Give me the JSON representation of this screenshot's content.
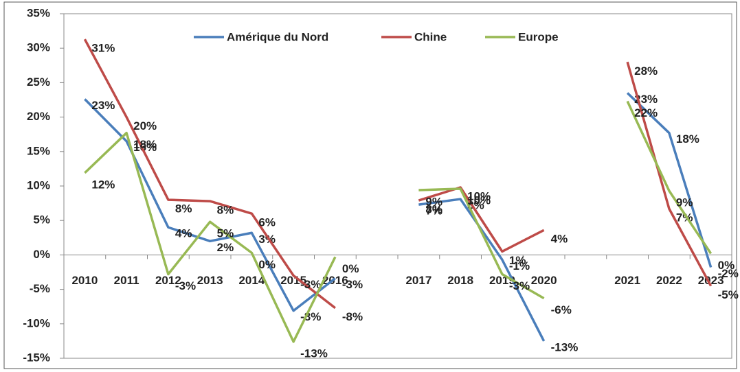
{
  "chart_data": {
    "type": "line",
    "categories": [
      "2010",
      "2011",
      "2012",
      "2013",
      "2014",
      "2015",
      "2016",
      null,
      "2017",
      "2018",
      "2019",
      "2020",
      null,
      "2021",
      "2022",
      "2023"
    ],
    "series": [
      {
        "name": "Amérique du Nord",
        "color": "#4a7ebb",
        "values": [
          22.6,
          16.5,
          4,
          2,
          3.2,
          -8.1,
          -3.4,
          null,
          7.3,
          8.1,
          -0.7,
          -12.5,
          null,
          23.5,
          17.7,
          -1.8
        ],
        "value_labels": [
          "23%",
          "16%",
          "4%",
          "2%",
          "3%",
          "-8%",
          "-3%",
          null,
          "7%",
          "8%",
          "-1%",
          "-13%",
          null,
          "23%",
          "18%",
          "-2%"
        ]
      },
      {
        "name": "Chine",
        "color": "#be4b48",
        "values": [
          31.3,
          20,
          8,
          7.8,
          6,
          -3,
          -7.7,
          null,
          7.9,
          9.8,
          0.5,
          3.6,
          null,
          28,
          6.7,
          -4.5
        ],
        "value_labels": [
          "31%",
          "20%",
          "8%",
          "8%",
          "6%",
          "-3%",
          "-8%",
          null,
          "8%",
          "10%",
          "1%",
          "4%",
          null,
          "28%",
          "7%",
          "-5%"
        ]
      },
      {
        "name": "Europe",
        "color": "#98b954",
        "values": [
          11.9,
          17.7,
          -2.8,
          4.8,
          0.3,
          -12.6,
          -0.3,
          null,
          9.4,
          9.6,
          -2.8,
          -6.3,
          null,
          22.3,
          9.3,
          0.2
        ],
        "value_labels": [
          "12%",
          "18%",
          "-3%",
          "5%",
          "0%",
          "-13%",
          "0%",
          null,
          "9%",
          "10%",
          "-3%",
          "-6%",
          null,
          "22%",
          "9%",
          "0%"
        ]
      }
    ],
    "ylim": [
      -15,
      35
    ],
    "yticks": [
      {
        "value": -15,
        "label": "-15%"
      },
      {
        "value": -10,
        "label": "-10%"
      },
      {
        "value": -5,
        "label": "-5%"
      },
      {
        "value": 0,
        "label": "0%"
      },
      {
        "value": 5,
        "label": "5%"
      },
      {
        "value": 10,
        "label": "10%"
      },
      {
        "value": 15,
        "label": "15%"
      },
      {
        "value": 20,
        "label": "20%"
      },
      {
        "value": 25,
        "label": "25%"
      },
      {
        "value": 30,
        "label": "30%"
      },
      {
        "value": 35,
        "label": "35%"
      }
    ],
    "grid": false,
    "legend": "top"
  }
}
